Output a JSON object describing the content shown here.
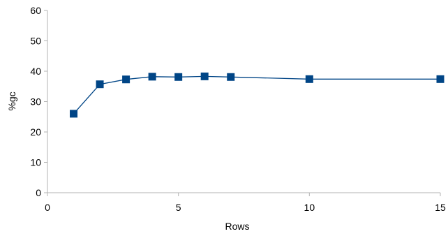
{
  "chart_data": {
    "type": "line",
    "title": "",
    "xlabel": "Rows",
    "ylabel": "%gc",
    "xlim": [
      0,
      15
    ],
    "ylim": [
      0,
      60
    ],
    "x_ticks": [
      0,
      5,
      10,
      15
    ],
    "y_ticks": [
      0,
      10,
      20,
      30,
      40,
      50,
      60
    ],
    "grid": false,
    "legend": "none",
    "series": [
      {
        "color": "#004586",
        "marker": "square",
        "points": [
          {
            "x": 1,
            "y": 26
          },
          {
            "x": 2,
            "y": 35.7
          },
          {
            "x": 3,
            "y": 37.3
          },
          {
            "x": 4,
            "y": 38.2
          },
          {
            "x": 5,
            "y": 38.1
          },
          {
            "x": 6,
            "y": 38.3
          },
          {
            "x": 7,
            "y": 38.1
          },
          {
            "x": 10,
            "y": 37.4
          },
          {
            "x": 15,
            "y": 37.4
          }
        ]
      }
    ]
  }
}
